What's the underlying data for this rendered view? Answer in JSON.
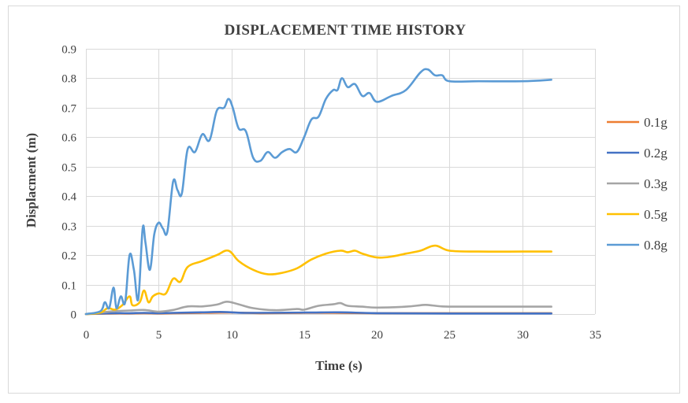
{
  "chart_data": {
    "type": "line",
    "title": "DISPLACEMENT TIME HISTORY",
    "xlabel": "Time (s)",
    "ylabel": "Displacment (m)",
    "xlim": [
      0,
      35
    ],
    "ylim": [
      0,
      0.9
    ],
    "xticks": [
      "0",
      "5",
      "10",
      "15",
      "20",
      "25",
      "30",
      "35"
    ],
    "yticks": [
      "0",
      "0.1",
      "0.2",
      "0.3",
      "0.4",
      "0.5",
      "0.6",
      "0.7",
      "0.8",
      "0.9"
    ],
    "grid": "vertical and horizontal",
    "legend_position": "right",
    "series": [
      {
        "name": "0.1g",
        "color": "#ed7d31",
        "x": [
          0,
          1,
          2,
          3,
          4,
          5,
          6,
          8,
          10,
          12,
          15,
          17,
          20,
          25,
          32
        ],
        "y": [
          0,
          0.001,
          0.002,
          0.002,
          0.003,
          0.002,
          0.003,
          0.004,
          0.005,
          0.003,
          0.004,
          0.004,
          0.003,
          0.003,
          0.003
        ]
      },
      {
        "name": "0.2g",
        "color": "#4472c4",
        "x": [
          0,
          1,
          2,
          3,
          4,
          5,
          6,
          8,
          9.5,
          11,
          15,
          17.5,
          20,
          25,
          32
        ],
        "y": [
          0,
          0.002,
          0.003,
          0.003,
          0.004,
          0.003,
          0.004,
          0.006,
          0.007,
          0.004,
          0.005,
          0.006,
          0.003,
          0.002,
          0.002
        ]
      },
      {
        "name": "0.3g",
        "color": "#a5a5a5",
        "x": [
          0,
          1,
          2,
          3,
          4,
          5,
          6,
          7,
          8,
          9,
          9.7,
          10.5,
          11.5,
          13,
          14.5,
          15,
          16,
          17,
          17.5,
          18,
          19,
          20,
          22,
          23,
          23.5,
          24.5,
          26,
          28,
          30,
          32
        ],
        "y": [
          0,
          0.005,
          0.01,
          0.012,
          0.014,
          0.008,
          0.014,
          0.026,
          0.026,
          0.032,
          0.042,
          0.033,
          0.02,
          0.013,
          0.017,
          0.015,
          0.028,
          0.033,
          0.037,
          0.028,
          0.025,
          0.022,
          0.025,
          0.03,
          0.031,
          0.026,
          0.025,
          0.025,
          0.025,
          0.025
        ]
      },
      {
        "name": "0.5g",
        "color": "#ffc000",
        "x": [
          0,
          1,
          1.5,
          2,
          2.5,
          3,
          3.2,
          3.7,
          4,
          4.3,
          4.6,
          5,
          5.5,
          6,
          6.5,
          7,
          8,
          9,
          9.8,
          10.5,
          11.5,
          12.5,
          13.5,
          14.5,
          15.5,
          16.5,
          17.5,
          18,
          18.5,
          19,
          20,
          21,
          22,
          23,
          24,
          25,
          27,
          30,
          32
        ],
        "y": [
          0,
          0.005,
          0.02,
          0.015,
          0.03,
          0.06,
          0.03,
          0.04,
          0.08,
          0.04,
          0.06,
          0.07,
          0.07,
          0.12,
          0.11,
          0.16,
          0.18,
          0.2,
          0.215,
          0.18,
          0.15,
          0.135,
          0.14,
          0.155,
          0.185,
          0.205,
          0.215,
          0.21,
          0.215,
          0.205,
          0.192,
          0.195,
          0.205,
          0.215,
          0.232,
          0.215,
          0.212,
          0.212,
          0.212
        ]
      },
      {
        "name": "0.8g",
        "color": "#5b9bd5",
        "x": [
          0,
          1,
          1.3,
          1.6,
          1.9,
          2.1,
          2.4,
          2.7,
          3,
          3.3,
          3.6,
          3.9,
          4.1,
          4.4,
          4.7,
          5,
          5.3,
          5.6,
          6,
          6.3,
          6.6,
          7,
          7.5,
          8,
          8.5,
          9,
          9.5,
          9.8,
          10.1,
          10.5,
          11,
          11.5,
          12,
          12.5,
          13,
          13.5,
          14,
          14.5,
          15,
          15.5,
          16,
          16.5,
          17,
          17.3,
          17.6,
          18,
          18.5,
          19,
          19.5,
          20,
          21,
          22,
          23,
          23.5,
          24,
          24.5,
          25,
          27,
          30,
          32
        ],
        "y": [
          0,
          0.01,
          0.04,
          0.02,
          0.09,
          0.02,
          0.06,
          0.04,
          0.2,
          0.15,
          0.05,
          0.29,
          0.24,
          0.15,
          0.27,
          0.31,
          0.29,
          0.28,
          0.45,
          0.42,
          0.41,
          0.56,
          0.55,
          0.61,
          0.59,
          0.69,
          0.7,
          0.73,
          0.7,
          0.63,
          0.62,
          0.53,
          0.52,
          0.55,
          0.53,
          0.55,
          0.56,
          0.55,
          0.6,
          0.66,
          0.67,
          0.73,
          0.76,
          0.76,
          0.8,
          0.77,
          0.78,
          0.74,
          0.75,
          0.72,
          0.74,
          0.76,
          0.82,
          0.83,
          0.81,
          0.81,
          0.79,
          0.79,
          0.79,
          0.795
        ]
      }
    ]
  }
}
